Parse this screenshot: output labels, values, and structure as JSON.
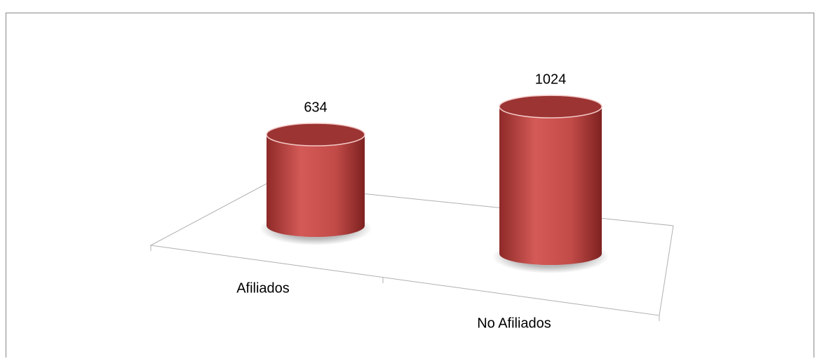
{
  "chart_data": {
    "type": "bar",
    "categories": [
      "Afiliados",
      "No Afiliados"
    ],
    "values": [
      634,
      1024
    ],
    "color": "#c0504d"
  }
}
